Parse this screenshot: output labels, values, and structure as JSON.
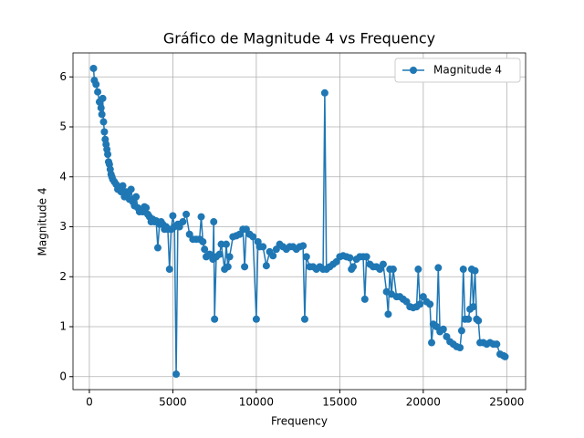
{
  "chart_data": {
    "type": "line",
    "title": "Gráfico de Magnitude 4 vs Frequency",
    "xlabel": "Frequency",
    "ylabel": "Magnitude 4",
    "x": [
      250,
      300,
      400,
      500,
      600,
      700,
      750,
      800,
      850,
      900,
      950,
      1000,
      1050,
      1100,
      1150,
      1200,
      1250,
      1300,
      1350,
      1400,
      1500,
      1600,
      1700,
      1800,
      1900,
      2000,
      2100,
      2200,
      2300,
      2400,
      2500,
      2600,
      2700,
      2800,
      2900,
      3000,
      3100,
      3200,
      3300,
      3400,
      3500,
      3600,
      3700,
      3800,
      3900,
      4000,
      4100,
      4200,
      4300,
      4400,
      4500,
      4600,
      4700,
      4800,
      4900,
      5000,
      5100,
      5200,
      5300,
      5400,
      5600,
      5800,
      6000,
      6200,
      6400,
      6600,
      6700,
      6800,
      6900,
      7000,
      7200,
      7400,
      7450,
      7500,
      7600,
      7800,
      7900,
      8100,
      8200,
      8300,
      8400,
      8600,
      8800,
      9000,
      9200,
      9300,
      9400,
      9600,
      9800,
      10000,
      10100,
      10200,
      10400,
      10600,
      10800,
      11000,
      11200,
      11400,
      11600,
      11800,
      12000,
      12200,
      12400,
      12600,
      12800,
      12900,
      13000,
      13200,
      13400,
      13600,
      13800,
      14000,
      14100,
      14200,
      14400,
      14600,
      14800,
      15000,
      15200,
      15400,
      15600,
      15700,
      15800,
      16000,
      16200,
      16400,
      16500,
      16600,
      16800,
      17000,
      17200,
      17400,
      17600,
      17800,
      17900,
      18000,
      18100,
      18200,
      18400,
      18600,
      18800,
      19000,
      19200,
      19400,
      19600,
      19700,
      19800,
      20000,
      20200,
      20400,
      20500,
      20600,
      20800,
      20900,
      21000,
      21200,
      21400,
      21600,
      21800,
      22000,
      22200,
      22300,
      22400,
      22500,
      22700,
      22800,
      22900,
      23000,
      23100,
      23200,
      23300,
      23400,
      23600,
      23800,
      24000,
      24200,
      24400,
      24600,
      24800,
      24900
    ],
    "series": [
      {
        "name": "Magnitude 4",
        "color": "#1f77b4",
        "values": [
          6.17,
          5.93,
          5.85,
          5.7,
          5.5,
          5.38,
          5.25,
          5.57,
          5.1,
          4.9,
          4.75,
          4.65,
          4.55,
          4.45,
          4.3,
          4.25,
          4.15,
          4.05,
          4.0,
          3.95,
          3.9,
          3.85,
          3.75,
          3.8,
          3.7,
          3.82,
          3.6,
          3.7,
          3.65,
          3.55,
          3.75,
          3.5,
          3.42,
          3.6,
          3.38,
          3.3,
          3.35,
          3.3,
          3.4,
          3.38,
          3.25,
          3.2,
          3.1,
          3.15,
          3.1,
          3.12,
          2.58,
          3.05,
          3.1,
          3.05,
          2.95,
          3.0,
          2.95,
          2.15,
          2.95,
          3.22,
          3.0,
          0.05,
          3.05,
          3.0,
          3.1,
          3.25,
          2.85,
          2.75,
          2.75,
          2.75,
          3.2,
          2.7,
          2.55,
          2.4,
          2.45,
          2.35,
          3.1,
          1.15,
          2.4,
          2.45,
          2.65,
          2.15,
          2.65,
          2.2,
          2.4,
          2.8,
          2.82,
          2.85,
          2.95,
          2.2,
          2.95,
          2.85,
          2.8,
          1.15,
          2.7,
          2.6,
          2.6,
          2.22,
          2.5,
          2.42,
          2.55,
          2.65,
          2.6,
          2.55,
          2.6,
          2.6,
          2.55,
          2.6,
          2.62,
          1.15,
          2.4,
          2.2,
          2.2,
          2.15,
          2.2,
          2.15,
          5.68,
          2.15,
          2.2,
          2.25,
          2.3,
          2.4,
          2.42,
          2.4,
          2.38,
          2.15,
          2.2,
          2.35,
          2.4,
          2.4,
          1.55,
          2.4,
          2.25,
          2.2,
          2.2,
          2.15,
          2.25,
          1.7,
          1.25,
          2.15,
          1.65,
          2.15,
          1.6,
          1.6,
          1.55,
          1.5,
          1.4,
          1.38,
          1.4,
          2.15,
          1.45,
          1.6,
          1.5,
          1.45,
          0.68,
          1.05,
          1.0,
          2.18,
          0.9,
          0.95,
          0.8,
          0.7,
          0.65,
          0.6,
          0.58,
          0.92,
          2.15,
          1.15,
          1.15,
          1.35,
          2.15,
          1.4,
          2.12,
          1.15,
          1.12,
          0.68,
          0.68,
          0.65,
          0.68,
          0.65,
          0.65,
          0.45,
          0.42,
          0.4
        ]
      }
    ],
    "xlim": [
      -980,
      26130
    ],
    "ylim": [
      -0.26,
      6.48
    ],
    "xticks": [
      0,
      5000,
      10000,
      15000,
      20000,
      25000
    ],
    "yticks": [
      0,
      1,
      2,
      3,
      4,
      5,
      6
    ],
    "grid": true,
    "legend": "upper right"
  }
}
